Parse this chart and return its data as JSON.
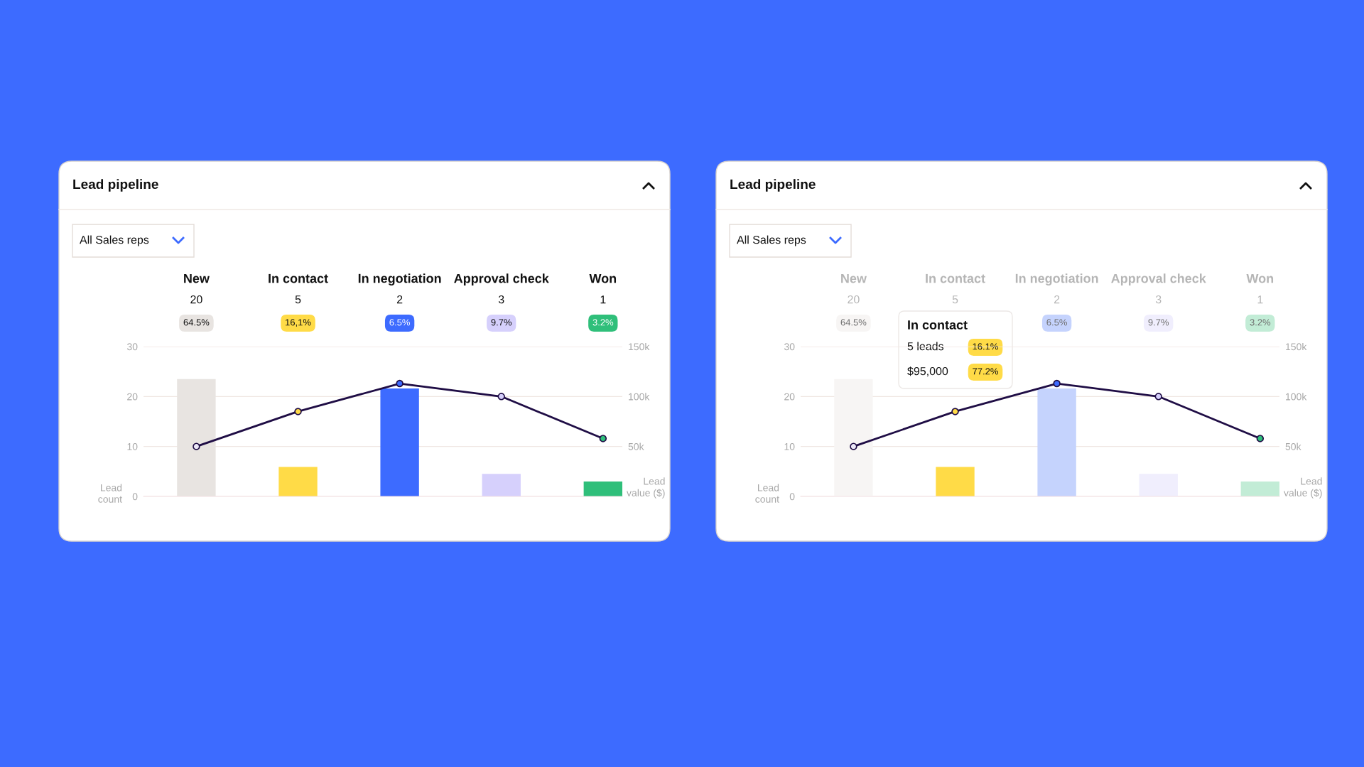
{
  "chart_data": [
    {
      "type": "bar",
      "title": "Lead pipeline",
      "categories": [
        "New",
        "In contact",
        "In negotiation",
        "Approval check",
        "Won"
      ],
      "values": [
        23.5,
        5.9,
        21.6,
        4.5,
        3.0
      ],
      "colors": [
        "#e8e4e1",
        "#ffdb47",
        "#3d6bff",
        "#d6d0fc",
        "#2fbf7a"
      ],
      "series": [
        {
          "type": "line",
          "axis": "y2",
          "color": "#1f0d45",
          "marker": "circle",
          "values": [
            50000,
            85000,
            113000,
            100000,
            58000
          ],
          "colors": [
            "#ece8f8",
            "#ffdb47",
            "#3d6bff",
            "#d6d0fc",
            "#2fbf7a"
          ]
        }
      ],
      "ylim": [
        0,
        30
      ],
      "yticks": [
        0,
        10,
        20,
        30
      ],
      "y2lim": [
        0,
        150000
      ],
      "y2ticks": [
        {
          "value": 0,
          "label": null
        },
        {
          "value": 50000,
          "label": "50k"
        },
        {
          "value": 100000,
          "label": "100k"
        },
        {
          "value": 150000,
          "label": "150k"
        }
      ],
      "ylabel": "Lead count",
      "y2label": "Lead value ($)",
      "grid": "y",
      "legend": false,
      "annotations": [
        "All Sales reps",
        "20",
        "5",
        "2",
        "3",
        "1",
        "64.5%",
        "16,1%",
        "6.5%",
        "9.7%",
        "3.2%"
      ]
    },
    {
      "type": "bar",
      "title": "Lead pipeline",
      "categories": [
        "New",
        "In contact",
        "In negotiation",
        "Approval check",
        "Won"
      ],
      "values": [
        23.5,
        5.9,
        21.6,
        4.5,
        3.0
      ],
      "colors": [
        "#f7f5f4",
        "#ffdb47",
        "#c5d3fd",
        "#f0eefd",
        "#c2ecd6"
      ],
      "series": [
        {
          "type": "line",
          "axis": "y2",
          "color": "#1f0d45",
          "marker": "circle",
          "values": [
            50000,
            85000,
            113000,
            100000,
            58000
          ],
          "colors": [
            "#ece8f8",
            "#ffdb47",
            "#3d6bff",
            "#d6d0fc",
            "#2fbf7a"
          ]
        }
      ],
      "ylim": [
        0,
        30
      ],
      "yticks": [
        0,
        10,
        20,
        30
      ],
      "y2lim": [
        0,
        150000
      ],
      "y2ticks": [
        {
          "value": 0,
          "label": null
        },
        {
          "value": 50000,
          "label": "50k"
        },
        {
          "value": 100000,
          "label": "100k"
        },
        {
          "value": 150000,
          "label": "150k"
        }
      ],
      "ylabel": "Lead count",
      "y2label": "Lead value ($)",
      "grid": "y",
      "legend": false,
      "annotations": [
        "All Sales reps",
        "20",
        "5",
        "2",
        "3",
        "1",
        "64.5%",
        null,
        "6.5%",
        "9.7%",
        "3.2%",
        "In contact",
        "5 leads",
        "16.1%",
        "$95,000",
        "77.2%"
      ]
    }
  ]
}
